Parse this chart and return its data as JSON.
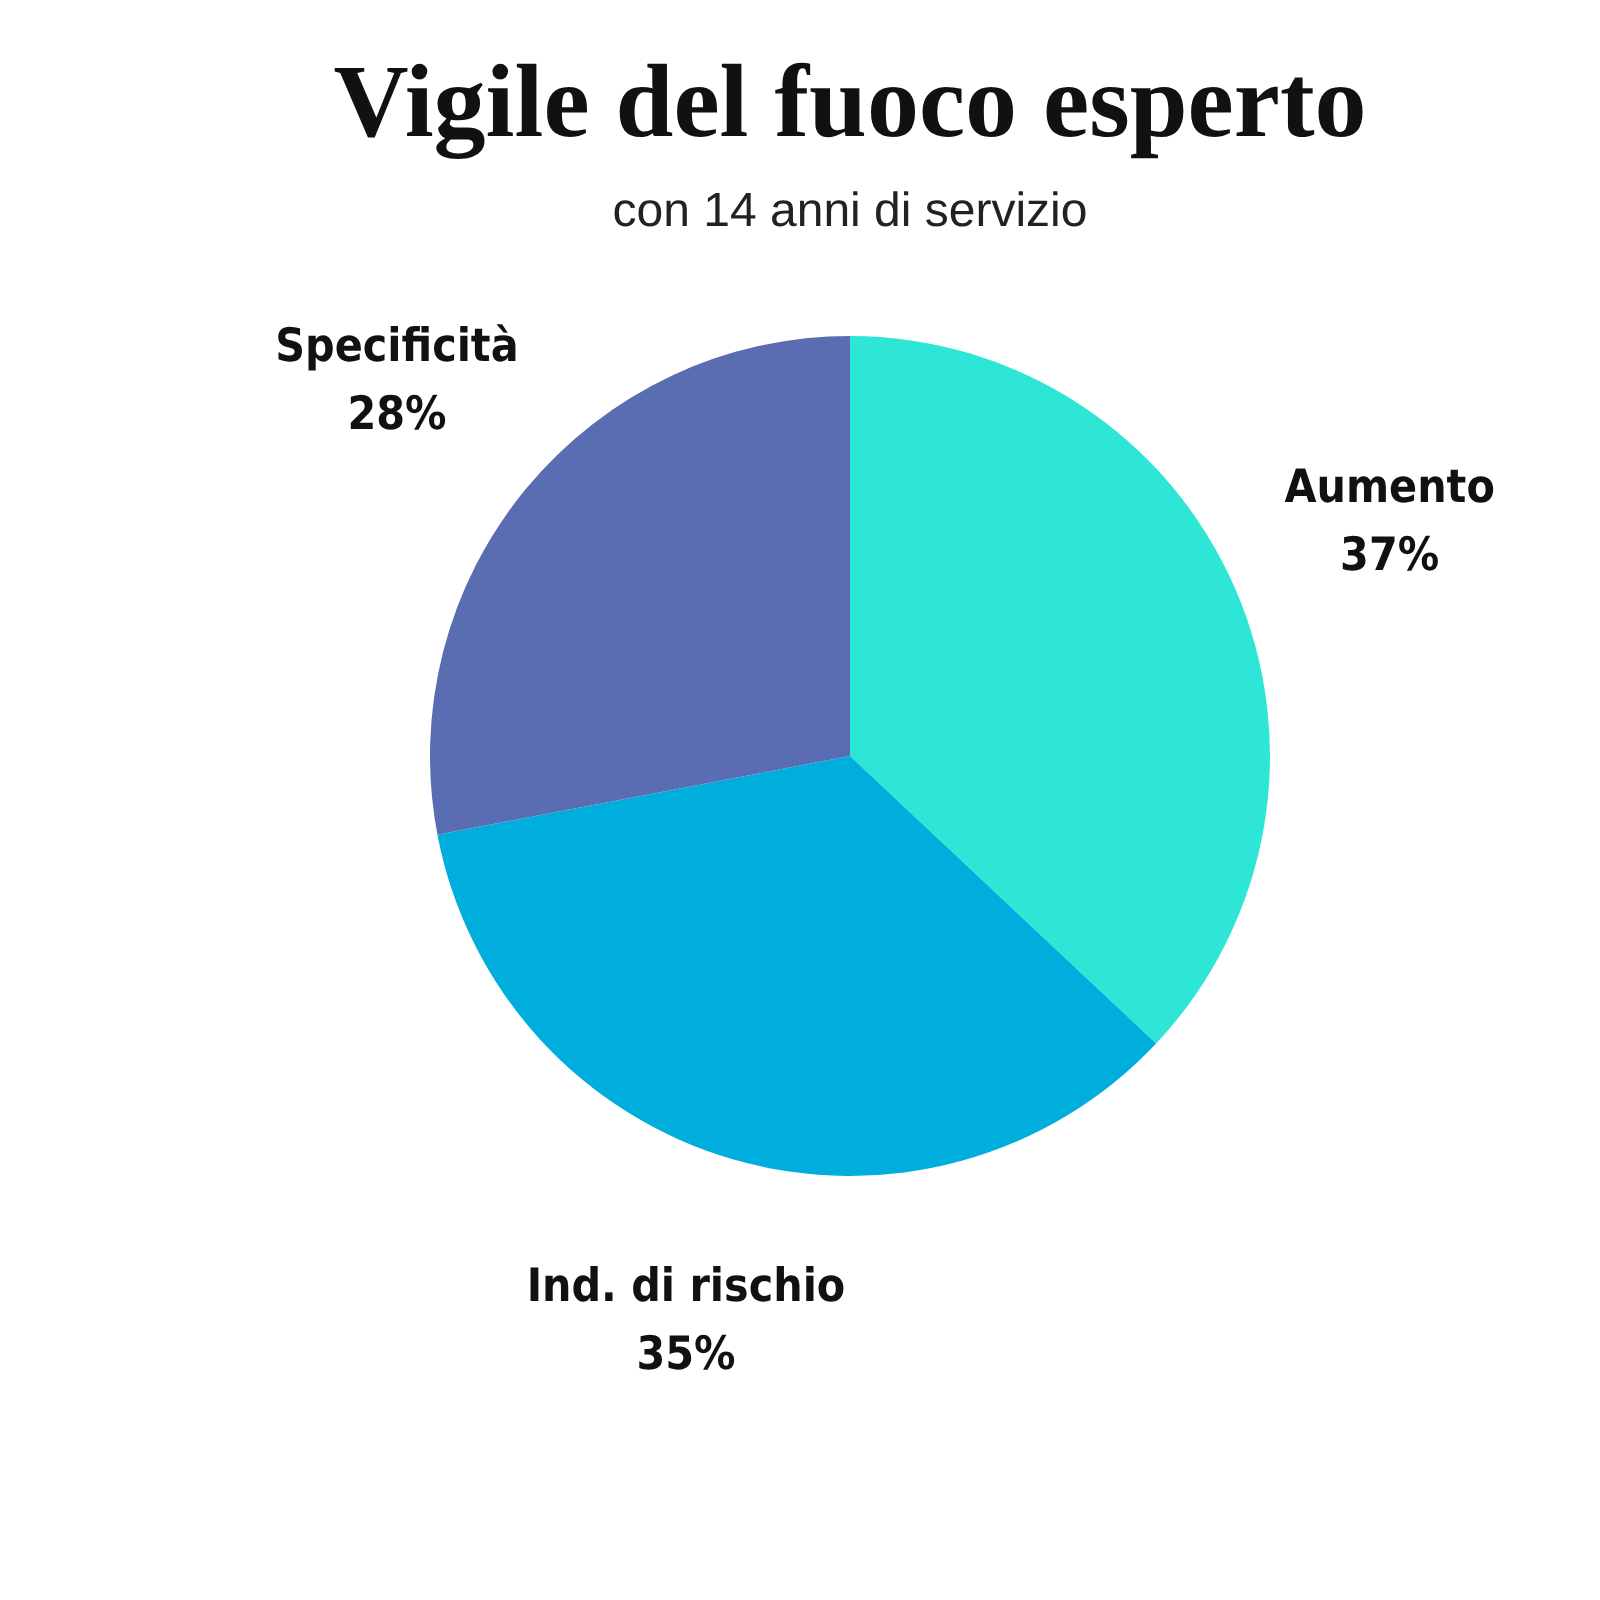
{
  "chart_data": {
    "type": "pie",
    "title": "Vigile del fuoco esperto",
    "subtitle": "con 14 anni di servizio",
    "categories": [
      "Aumento",
      "Ind. di rischio",
      "Specificità"
    ],
    "values": [
      37,
      35,
      28
    ],
    "colors": [
      "#2ee6d6",
      "#00aedd",
      "#5a6db3"
    ],
    "value_labels": [
      "37%",
      "35%",
      "28%"
    ],
    "legend": false
  }
}
